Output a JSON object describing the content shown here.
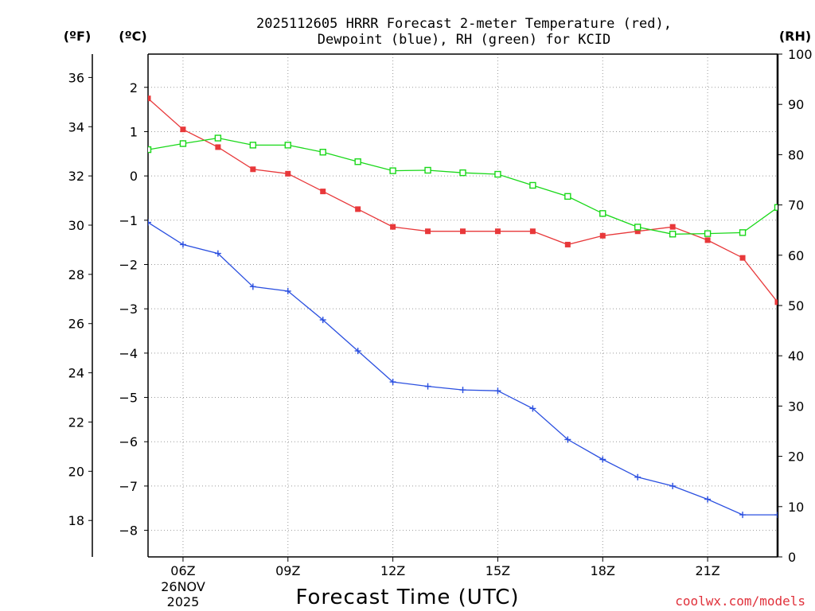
{
  "chart_data": {
    "type": "line",
    "title_line1": "2025112605 HRRR Forecast 2-meter Temperature (red),",
    "title_line2": "Dewpoint (blue), RH (green) for KCID",
    "xlabel": "Forecast Time (UTC)",
    "credit": "coolwx.com/models",
    "date_label_1": "26NOV",
    "date_label_2": "2025",
    "units": {
      "left_f": "(ºF)",
      "left_c": "(ºC)",
      "right": "(RH)"
    },
    "x_hours": [
      5,
      6,
      7,
      8,
      9,
      10,
      11,
      12,
      13,
      14,
      15,
      16,
      17,
      18,
      19,
      20,
      21,
      22,
      23
    ],
    "xlim": [
      5,
      23
    ],
    "x_ticks": [
      {
        "hour": 6,
        "label": "06Z"
      },
      {
        "hour": 9,
        "label": "09Z"
      },
      {
        "hour": 12,
        "label": "12Z"
      },
      {
        "hour": 15,
        "label": "15Z"
      },
      {
        "hour": 18,
        "label": "18Z"
      },
      {
        "hour": 21,
        "label": "21Z"
      }
    ],
    "y_celsius": {
      "lim": [
        -8.6,
        2.75
      ],
      "ticks": [
        2,
        1,
        0,
        -1,
        -2,
        -3,
        -4,
        -5,
        -6,
        -7,
        -8
      ],
      "labels": [
        "2",
        "1",
        "0",
        "−1",
        "−2",
        "−3",
        "−4",
        "−5",
        "−6",
        "−7",
        "−8"
      ]
    },
    "y_fahrenheit": {
      "ticks": [
        36,
        34,
        32,
        30,
        28,
        26,
        24,
        22,
        20,
        18
      ],
      "labels": [
        "36",
        "34",
        "32",
        "30",
        "28",
        "26",
        "24",
        "22",
        "20",
        "18"
      ]
    },
    "y_rh": {
      "lim": [
        0,
        100
      ],
      "ticks": [
        0,
        10,
        20,
        30,
        40,
        50,
        60,
        70,
        80,
        90,
        100
      ],
      "labels": [
        "0",
        "10",
        "20",
        "30",
        "40",
        "50",
        "60",
        "70",
        "80",
        "90",
        "100"
      ]
    },
    "series": [
      {
        "name": "Temperature",
        "axis": "celsius",
        "color": "#e8383a",
        "marker": "filled-square",
        "values": [
          1.75,
          1.05,
          0.65,
          0.15,
          0.05,
          -0.35,
          -0.75,
          -1.15,
          -1.25,
          -1.25,
          -1.25,
          -1.25,
          -1.55,
          -1.35,
          -1.25,
          -1.15,
          -1.45,
          -1.85,
          -2.85
        ]
      },
      {
        "name": "Dewpoint",
        "axis": "celsius",
        "color": "#2a4fe0",
        "marker": "plus",
        "values": [
          -1.05,
          -1.55,
          -1.75,
          -2.5,
          -2.6,
          -3.25,
          -3.95,
          -4.65,
          -4.75,
          -4.83,
          -4.85,
          -5.25,
          -5.95,
          -6.4,
          -6.8,
          -7.0,
          -7.3,
          -7.65,
          -7.65
        ]
      },
      {
        "name": "RH",
        "axis": "rh",
        "color": "#19d819",
        "marker": "open-square",
        "values": [
          81,
          82.2,
          83.3,
          81.9,
          81.9,
          80.5,
          78.6,
          76.8,
          76.9,
          76.4,
          76.1,
          73.9,
          71.7,
          68.3,
          65.6,
          64.2,
          64.3,
          64.5,
          69.5
        ]
      }
    ]
  }
}
